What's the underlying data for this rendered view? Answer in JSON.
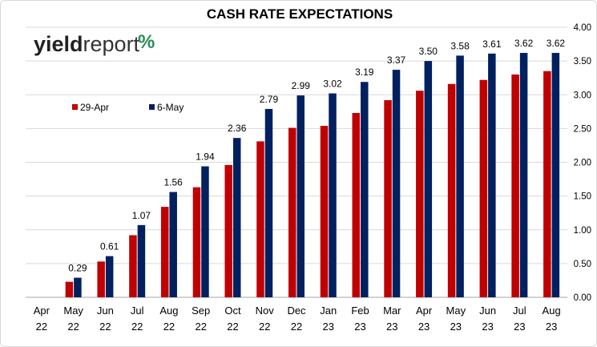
{
  "colors": {
    "series1": "#c00000",
    "series2": "#002060",
    "logo_percent_green": "#2e8b57",
    "logo_percent_red": "#c00000"
  },
  "logo": {
    "part1": "yield",
    "part2": "report",
    "part3": "%"
  },
  "chart_data": {
    "type": "bar",
    "title": "CASH RATE EXPECTATIONS",
    "categories": [
      [
        "Apr",
        "22"
      ],
      [
        "May",
        "22"
      ],
      [
        "Jun",
        "22"
      ],
      [
        "Jul",
        "22"
      ],
      [
        "Aug",
        "22"
      ],
      [
        "Sep",
        "22"
      ],
      [
        "Oct",
        "22"
      ],
      [
        "Nov",
        "22"
      ],
      [
        "Dec",
        "22"
      ],
      [
        "Jan",
        "23"
      ],
      [
        "Feb",
        "23"
      ],
      [
        "Mar",
        "23"
      ],
      [
        "Apr",
        "23"
      ],
      [
        "May",
        "23"
      ],
      [
        "Jun",
        "23"
      ],
      [
        "Jul",
        "23"
      ],
      [
        "Aug",
        "23"
      ]
    ],
    "series": [
      {
        "name": "29-Apr",
        "color": "#c00000",
        "values": [
          0.0,
          0.23,
          0.53,
          0.92,
          1.34,
          1.63,
          1.96,
          2.31,
          2.51,
          2.54,
          2.73,
          2.92,
          3.06,
          3.16,
          3.22,
          3.3,
          3.35
        ]
      },
      {
        "name": "6-May",
        "color": "#002060",
        "values": [
          0.0,
          0.29,
          0.61,
          1.07,
          1.56,
          1.94,
          2.36,
          2.79,
          2.99,
          3.02,
          3.19,
          3.37,
          3.5,
          3.58,
          3.61,
          3.62,
          3.62
        ]
      }
    ],
    "data_labels": [
      "",
      "0.29",
      "0.61",
      "1.07",
      "1.56",
      "1.94",
      "2.36",
      "2.79",
      "2.99",
      "3.02",
      "3.19",
      "3.37",
      "3.50",
      "3.58",
      "3.61",
      "3.62",
      "3.62"
    ],
    "y_ticks": [
      "0.00",
      "0.50",
      "1.00",
      "1.50",
      "2.00",
      "2.50",
      "3.00",
      "3.50",
      "4.00"
    ],
    "ylim": [
      0,
      4
    ],
    "y_axis_side": "right",
    "grid": true,
    "legend_position": "left"
  }
}
